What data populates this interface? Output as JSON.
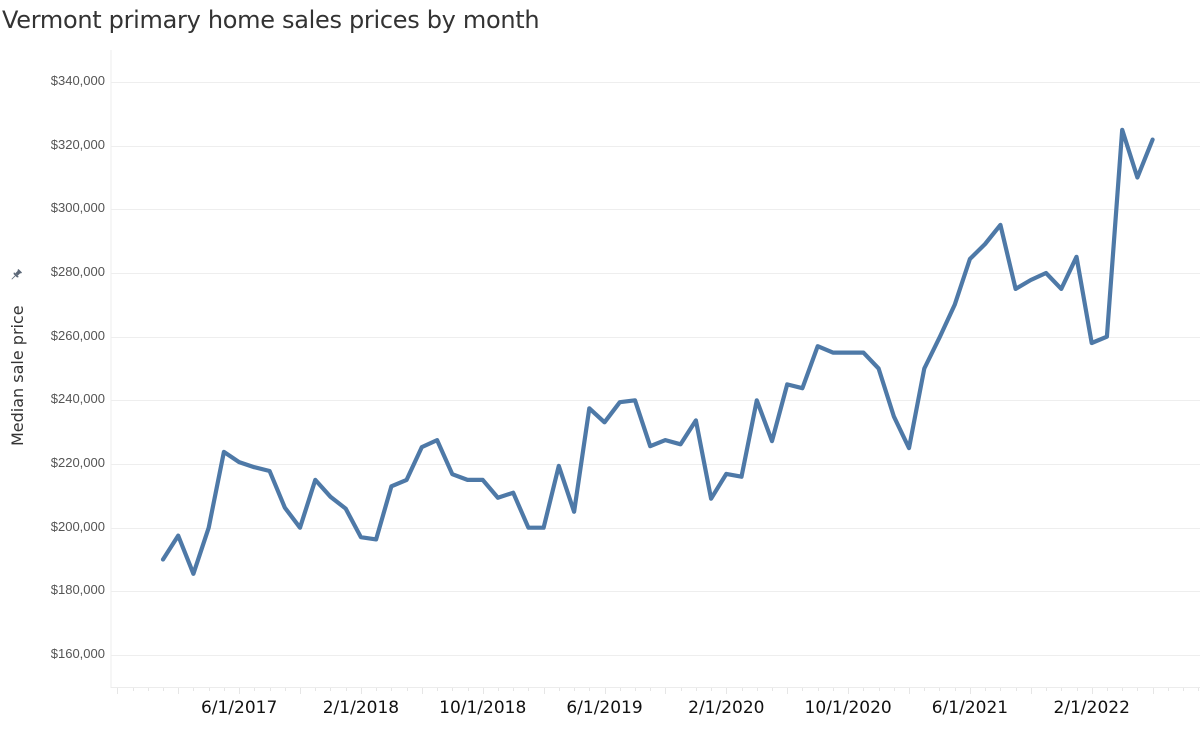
{
  "chart": {
    "title": "Vermont primary home sales prices by month",
    "ylabel": "Median sale price",
    "pin_icon": "pin-icon",
    "line_color": "#4e79a7",
    "gridline_color": "#eeeeee",
    "y_ticks": [
      "$340,000",
      "$320,000",
      "$300,000",
      "$280,000",
      "$260,000",
      "$240,000",
      "$220,000",
      "$200,000",
      "$180,000",
      "$160,000"
    ],
    "x_ticks": [
      "6/1/2017",
      "2/1/2018",
      "10/1/2018",
      "6/1/2019",
      "2/1/2020",
      "10/1/2020",
      "6/1/2021",
      "2/1/2022"
    ]
  },
  "chart_data": {
    "type": "line",
    "title": "Vermont primary home sales prices by month",
    "xlabel": "",
    "ylabel": "Median sale price",
    "ylim": [
      150000,
      350000
    ],
    "y_tick_values": [
      160000,
      180000,
      200000,
      220000,
      240000,
      260000,
      280000,
      300000,
      320000,
      340000
    ],
    "x_tick_labels": [
      "6/1/2017",
      "2/1/2018",
      "10/1/2018",
      "6/1/2019",
      "2/1/2020",
      "10/1/2020",
      "6/1/2021",
      "2/1/2022"
    ],
    "grid": true,
    "legend": null,
    "x": [
      "1/1/2017",
      "2/1/2017",
      "3/1/2017",
      "4/1/2017",
      "5/1/2017",
      "6/1/2017",
      "7/1/2017",
      "8/1/2017",
      "9/1/2017",
      "10/1/2017",
      "11/1/2017",
      "12/1/2017",
      "1/1/2018",
      "2/1/2018",
      "3/1/2018",
      "4/1/2018",
      "5/1/2018",
      "6/1/2018",
      "7/1/2018",
      "8/1/2018",
      "9/1/2018",
      "10/1/2018",
      "11/1/2018",
      "12/1/2018",
      "1/1/2019",
      "2/1/2019",
      "3/1/2019",
      "4/1/2019",
      "5/1/2019",
      "6/1/2019",
      "7/1/2019",
      "8/1/2019",
      "9/1/2019",
      "10/1/2019",
      "11/1/2019",
      "12/1/2019",
      "1/1/2020",
      "2/1/2020",
      "3/1/2020",
      "4/1/2020",
      "5/1/2020",
      "6/1/2020",
      "7/1/2020",
      "8/1/2020",
      "9/1/2020",
      "10/1/2020",
      "11/1/2020",
      "12/1/2020",
      "1/1/2021",
      "2/1/2021",
      "3/1/2021",
      "4/1/2021",
      "5/1/2021",
      "6/1/2021",
      "7/1/2021",
      "8/1/2021",
      "9/1/2021",
      "10/1/2021",
      "11/1/2021",
      "12/1/2021",
      "1/1/2022",
      "2/1/2022",
      "3/1/2022",
      "4/1/2022",
      "5/1/2022",
      "6/1/2022"
    ],
    "series": [
      {
        "name": "Median sale price",
        "values": [
          190000,
          197500,
          185500,
          200000,
          223800,
          220600,
          219000,
          217800,
          206300,
          200000,
          215000,
          209700,
          206000,
          197000,
          196300,
          213000,
          215000,
          225300,
          227500,
          216800,
          215000,
          215000,
          209400,
          211000,
          200000,
          200000,
          219400,
          205000,
          237500,
          233100,
          239400,
          240000,
          225600,
          227500,
          226200,
          233700,
          209100,
          216900,
          216000,
          240000,
          227200,
          245000,
          243800,
          257000,
          255000,
          255000,
          255000,
          250000,
          235000,
          225000,
          250000,
          259700,
          270000,
          284400,
          289100,
          295100,
          275000,
          277800,
          280000,
          275000,
          285100,
          258000,
          260000,
          325000,
          310000,
          321900
        ]
      }
    ]
  }
}
